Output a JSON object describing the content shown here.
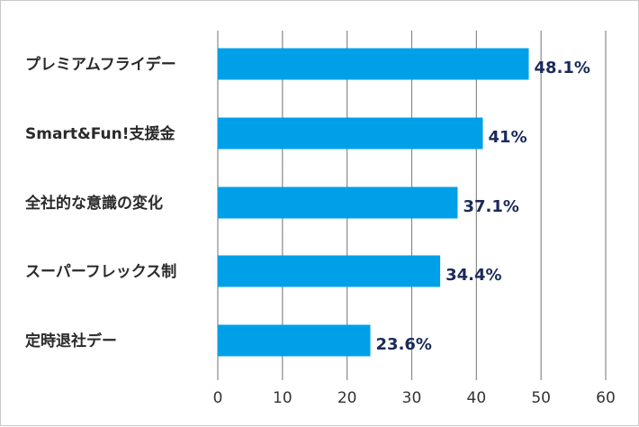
{
  "chart_data": {
    "type": "bar",
    "orientation": "horizontal",
    "categories": [
      "プレミアムフライデー",
      "Smart&Fun!支援金",
      "全社的な意識の変化",
      "スーパーフレックス制",
      "定時退社デー"
    ],
    "values": [
      48.1,
      41,
      37.1,
      34.4,
      23.6
    ],
    "data_labels": [
      "48.1%",
      "41%",
      "37.1%",
      "34.4%",
      "23.6%"
    ],
    "x_ticks": [
      "0",
      "10",
      "20",
      "30",
      "40",
      "50",
      "60"
    ],
    "xlim": [
      0,
      60
    ],
    "title": "",
    "xlabel": "",
    "ylabel": "",
    "grid": "vertical",
    "legend": "none",
    "colors": {
      "bar": "#00a0e9",
      "grid": "#888888",
      "data_label": "#1a2a5a"
    }
  }
}
